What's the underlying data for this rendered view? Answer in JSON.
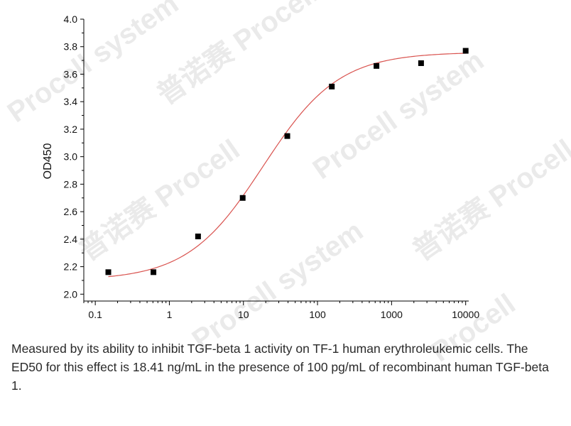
{
  "chart_data": {
    "type": "scatter",
    "xscale": "log",
    "xlim": [
      0.07,
      11000
    ],
    "ylim": [
      1.95,
      4.0
    ],
    "ylabel": "OD450",
    "xlabel": "",
    "x_ticks": [
      0.1,
      1,
      10,
      100,
      1000,
      10000
    ],
    "x_tick_labels": [
      "0.1",
      "1",
      "10",
      "100",
      "1000",
      "10000"
    ],
    "y_ticks": [
      2.0,
      2.2,
      2.4,
      2.6,
      2.8,
      3.0,
      3.2,
      3.4,
      3.6,
      3.8,
      4.0
    ],
    "y_tick_labels": [
      "2.0",
      "2.2",
      "2.4",
      "2.6",
      "2.8",
      "3.0",
      "3.2",
      "3.4",
      "3.6",
      "3.8",
      "4.0"
    ],
    "series": [
      {
        "x": [
          0.15,
          0.61,
          2.44,
          9.77,
          39.1,
          156,
          625,
          2500,
          10000
        ],
        "y": [
          2.16,
          2.16,
          2.42,
          2.7,
          3.15,
          3.51,
          3.66,
          3.68,
          3.77
        ]
      }
    ],
    "fit": {
      "bottom": 2.1,
      "top": 3.76,
      "ec50": 18.41,
      "hill": 0.85
    },
    "colors": {
      "marker": "#000000",
      "fit_line": "#d9534f",
      "axis": "#000000"
    }
  },
  "caption": "Measured by its ability to inhibit TGF-beta 1 activity on TF-1 human erythroleukemic cells. The ED50 for this effect is 18.41 ng/mL in the presence of 100 pg/mL of recombinant human TGF-beta 1.",
  "watermark": "普诺赛 | Procell system"
}
